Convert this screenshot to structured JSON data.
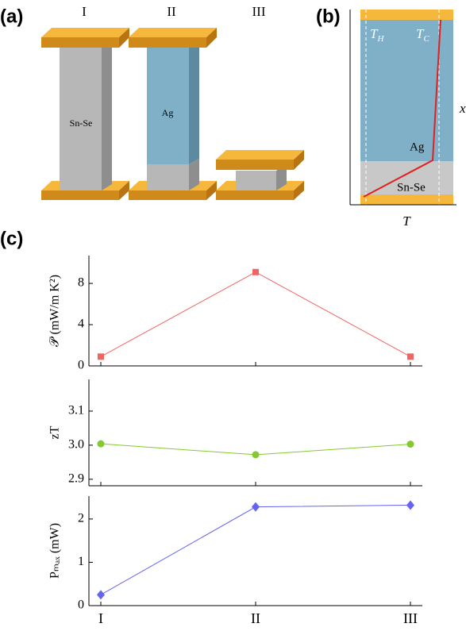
{
  "panel_labels": [
    "(a)",
    "(b)",
    "(c)"
  ],
  "diagram_a": {
    "columns": [
      "I",
      "II",
      "III"
    ],
    "materials": [
      "Sn-Se",
      "Ag"
    ]
  },
  "diagram_b": {
    "t_h": {
      "base": "T",
      "sub": "H"
    },
    "t_c": {
      "base": "T",
      "sub": "C"
    },
    "materials": [
      "Ag",
      "Sn-Se"
    ],
    "x_label": "T",
    "y_label": "x"
  },
  "chart_data": [
    {
      "type": "line",
      "y_label": "𝒫 (mW/m K²)",
      "categories": [
        "I",
        "II",
        "III"
      ],
      "values": [
        0.9,
        9.1,
        0.9
      ],
      "color": "#f06464",
      "marker": "square",
      "ylim": [
        0,
        10.7
      ],
      "yticks": [
        0,
        4,
        8
      ]
    },
    {
      "type": "line",
      "y_label": "zT",
      "categories": [
        "I",
        "II",
        "III"
      ],
      "values": [
        3.004,
        2.972,
        3.003
      ],
      "color": "#86c832",
      "marker": "circle",
      "ylim": [
        2.881,
        3.193
      ],
      "yticks": [
        2.9,
        {
          "value": 3,
          "label": "3.0"
        },
        3.1
      ]
    },
    {
      "type": "line",
      "y_label": "Pₘₐₓ (mW)",
      "categories": [
        "I",
        "II",
        "III"
      ],
      "values": [
        0.25,
        2.28,
        2.32
      ],
      "color": "#6464f0",
      "marker": "diamond",
      "ylim": [
        0,
        2.53
      ],
      "yticks": [
        0,
        1,
        2
      ]
    }
  ]
}
